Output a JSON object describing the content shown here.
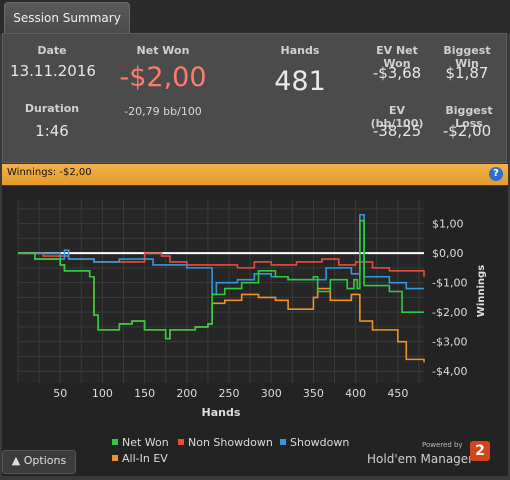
{
  "tab": {
    "label": "Session Summary"
  },
  "stats": {
    "date_label": "Date",
    "date_value": "13.11.2016",
    "duration_label": "Duration",
    "duration_value": "1:46",
    "netwon_label": "Net Won",
    "netwon_value": "-$2,00",
    "netwon_sub": "-20,79 bb/100",
    "hands_label": "Hands",
    "hands_value": "481",
    "ev_net_won_label": "EV Net Won",
    "ev_net_won_value": "-$3,68",
    "biggest_win_label": "Biggest Win",
    "biggest_win_value": "$1,87",
    "ev_bb_label": "EV (bb/100)",
    "ev_bb_value": "-38,25",
    "biggest_loss_label": "Biggest Loss",
    "biggest_loss_value": "-$2,00"
  },
  "winnings_bar": {
    "text": "Winnings: -$2,00",
    "help_icon": "?"
  },
  "footer": {
    "options_label": "Options",
    "powered_by": "Powered by",
    "brand": "Hold'em Manager",
    "brand_mark": "2"
  },
  "colors": {
    "net_won": "#2ecc40",
    "non_showdown": "#e74c3c",
    "showdown": "#3498db",
    "all_in_ev": "#f0922b",
    "zero_line": "#ffffff",
    "bar": "#f0a83a"
  },
  "chart_data": {
    "type": "line",
    "xlabel": "Hands",
    "ylabel": "Winnings",
    "xlim": [
      0,
      481
    ],
    "ylim": [
      -4.4,
      1.8
    ],
    "x_ticks": [
      50,
      100,
      150,
      200,
      250,
      300,
      350,
      400,
      450
    ],
    "y_ticks": [
      1.0,
      0.0,
      -1.0,
      -2.0,
      -3.0,
      -4.0
    ],
    "y_tick_labels": [
      "$1,00",
      "$0,00",
      "-$1,00",
      "-$2,00",
      "-$3,00",
      "-$4,00"
    ],
    "grid": true,
    "legend": [
      "Net Won",
      "Non Showdown",
      "Showdown",
      "All-In EV"
    ],
    "series": [
      {
        "name": "Net Won",
        "points": [
          [
            0,
            0
          ],
          [
            20,
            -0.2
          ],
          [
            50,
            -0.4
          ],
          [
            55,
            -0.6
          ],
          [
            85,
            -0.8
          ],
          [
            90,
            -2.1
          ],
          [
            95,
            -2.6
          ],
          [
            120,
            -2.4
          ],
          [
            135,
            -2.3
          ],
          [
            150,
            -2.6
          ],
          [
            175,
            -2.9
          ],
          [
            180,
            -2.6
          ],
          [
            200,
            -2.6
          ],
          [
            210,
            -2.5
          ],
          [
            225,
            -2.4
          ],
          [
            230,
            -1.4
          ],
          [
            245,
            -1.2
          ],
          [
            265,
            -1.0
          ],
          [
            285,
            -0.6
          ],
          [
            305,
            -0.8
          ],
          [
            320,
            -0.9
          ],
          [
            350,
            -0.8
          ],
          [
            355,
            -1.3
          ],
          [
            370,
            -0.9
          ],
          [
            390,
            -1.2
          ],
          [
            398,
            -0.9
          ],
          [
            402,
            -1.2
          ],
          [
            405,
            1.1
          ],
          [
            410,
            -1.1
          ],
          [
            440,
            -1.3
          ],
          [
            455,
            -2.0
          ],
          [
            481,
            -2.0
          ]
        ]
      },
      {
        "name": "Non Showdown",
        "points": [
          [
            0,
            0
          ],
          [
            30,
            -0.1
          ],
          [
            60,
            -0.2
          ],
          [
            90,
            -0.3
          ],
          [
            120,
            -0.3
          ],
          [
            150,
            0.0
          ],
          [
            170,
            -0.1
          ],
          [
            180,
            -0.3
          ],
          [
            200,
            -0.4
          ],
          [
            240,
            -0.4
          ],
          [
            260,
            -0.5
          ],
          [
            280,
            -0.3
          ],
          [
            300,
            -0.4
          ],
          [
            330,
            -0.3
          ],
          [
            360,
            -0.2
          ],
          [
            380,
            -0.4
          ],
          [
            400,
            -0.3
          ],
          [
            420,
            -0.5
          ],
          [
            440,
            -0.6
          ],
          [
            481,
            -0.8
          ]
        ]
      },
      {
        "name": "Showdown",
        "points": [
          [
            0,
            0
          ],
          [
            50,
            -0.2
          ],
          [
            55,
            0.1
          ],
          [
            60,
            -0.2
          ],
          [
            90,
            -0.3
          ],
          [
            120,
            -0.2
          ],
          [
            160,
            -0.4
          ],
          [
            200,
            -0.5
          ],
          [
            230,
            -1.4
          ],
          [
            235,
            -1.0
          ],
          [
            260,
            -0.9
          ],
          [
            280,
            -0.7
          ],
          [
            300,
            -0.8
          ],
          [
            320,
            -0.9
          ],
          [
            350,
            -0.9
          ],
          [
            365,
            -0.5
          ],
          [
            395,
            -0.7
          ],
          [
            405,
            1.3
          ],
          [
            410,
            -0.8
          ],
          [
            440,
            -1.0
          ],
          [
            460,
            -1.2
          ],
          [
            481,
            -1.2
          ]
        ]
      },
      {
        "name": "All-In EV",
        "points": [
          [
            0,
            0
          ],
          [
            20,
            -0.2
          ],
          [
            50,
            -0.4
          ],
          [
            55,
            -0.6
          ],
          [
            85,
            -0.8
          ],
          [
            90,
            -2.1
          ],
          [
            95,
            -2.6
          ],
          [
            120,
            -2.4
          ],
          [
            135,
            -2.3
          ],
          [
            150,
            -2.6
          ],
          [
            175,
            -2.9
          ],
          [
            180,
            -2.6
          ],
          [
            200,
            -2.6
          ],
          [
            210,
            -2.5
          ],
          [
            225,
            -2.4
          ],
          [
            230,
            -1.7
          ],
          [
            245,
            -1.6
          ],
          [
            265,
            -1.4
          ],
          [
            285,
            -1.5
          ],
          [
            305,
            -1.6
          ],
          [
            320,
            -1.9
          ],
          [
            350,
            -1.5
          ],
          [
            355,
            -1.2
          ],
          [
            370,
            -1.6
          ],
          [
            395,
            -1.4
          ],
          [
            405,
            -2.3
          ],
          [
            420,
            -2.6
          ],
          [
            440,
            -2.6
          ],
          [
            450,
            -3.0
          ],
          [
            460,
            -3.6
          ],
          [
            481,
            -3.7
          ]
        ]
      }
    ]
  }
}
